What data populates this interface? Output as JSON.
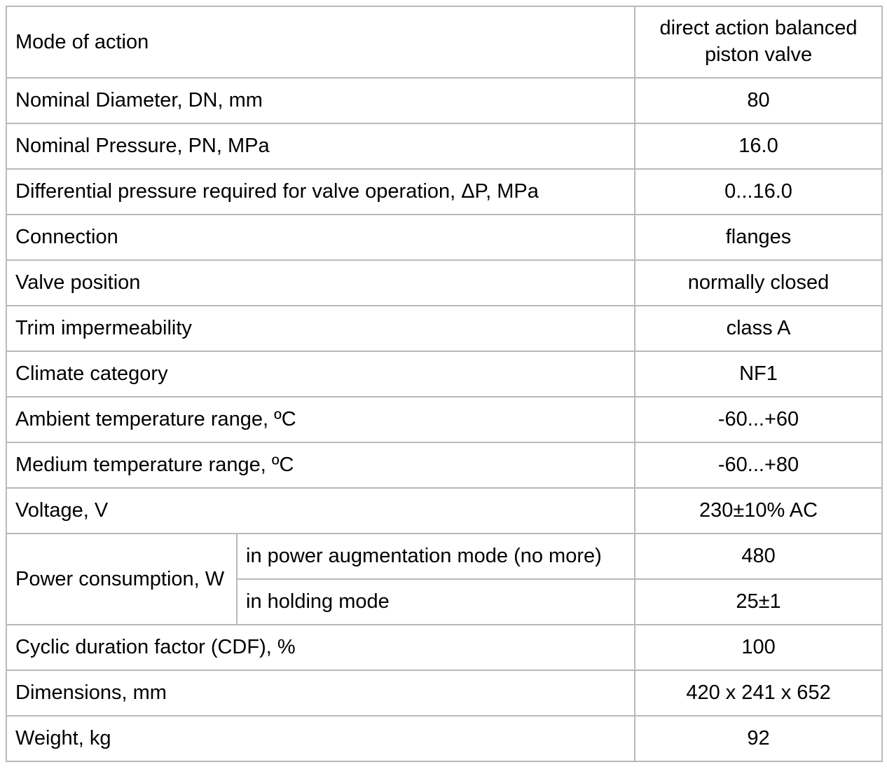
{
  "colors": {
    "border": "#b9b9b9",
    "text": "#000000",
    "background": "#ffffff"
  },
  "table": {
    "name": "valve-specifications",
    "rows": [
      {
        "label": "Mode of action",
        "value": "direct action balanced piston valve",
        "tall": true
      },
      {
        "label": "Nominal Diameter, DN, mm",
        "value": "80"
      },
      {
        "label": "Nominal Pressure, PN, MPa",
        "value": "16.0"
      },
      {
        "label": "Differential pressure required for valve operation, ΔP, MPa",
        "value": "0...16.0"
      },
      {
        "label": "Connection",
        "value": "flanges"
      },
      {
        "label": "Valve position",
        "value": "normally closed"
      },
      {
        "label": "Trim impermeability",
        "value": "class A"
      },
      {
        "label": "Climate category",
        "value": "NF1"
      },
      {
        "label": "Ambient temperature range, ºC",
        "value": "-60...+60"
      },
      {
        "label": "Medium temperature range, ºC",
        "value": "-60...+80"
      },
      {
        "label": "Voltage, V",
        "value": "230±10% AC"
      },
      {
        "label": "Power consumption, W",
        "subrows": [
          {
            "label": "in power augmentation mode (no more)",
            "value": "480"
          },
          {
            "label": "in holding mode",
            "value": "25±1"
          }
        ]
      },
      {
        "label": "Cyclic duration factor (CDF), %",
        "value": "100"
      },
      {
        "label": "Dimensions, mm",
        "value": "420 x 241 x 652"
      },
      {
        "label": "Weight, kg",
        "value": "92"
      }
    ]
  }
}
